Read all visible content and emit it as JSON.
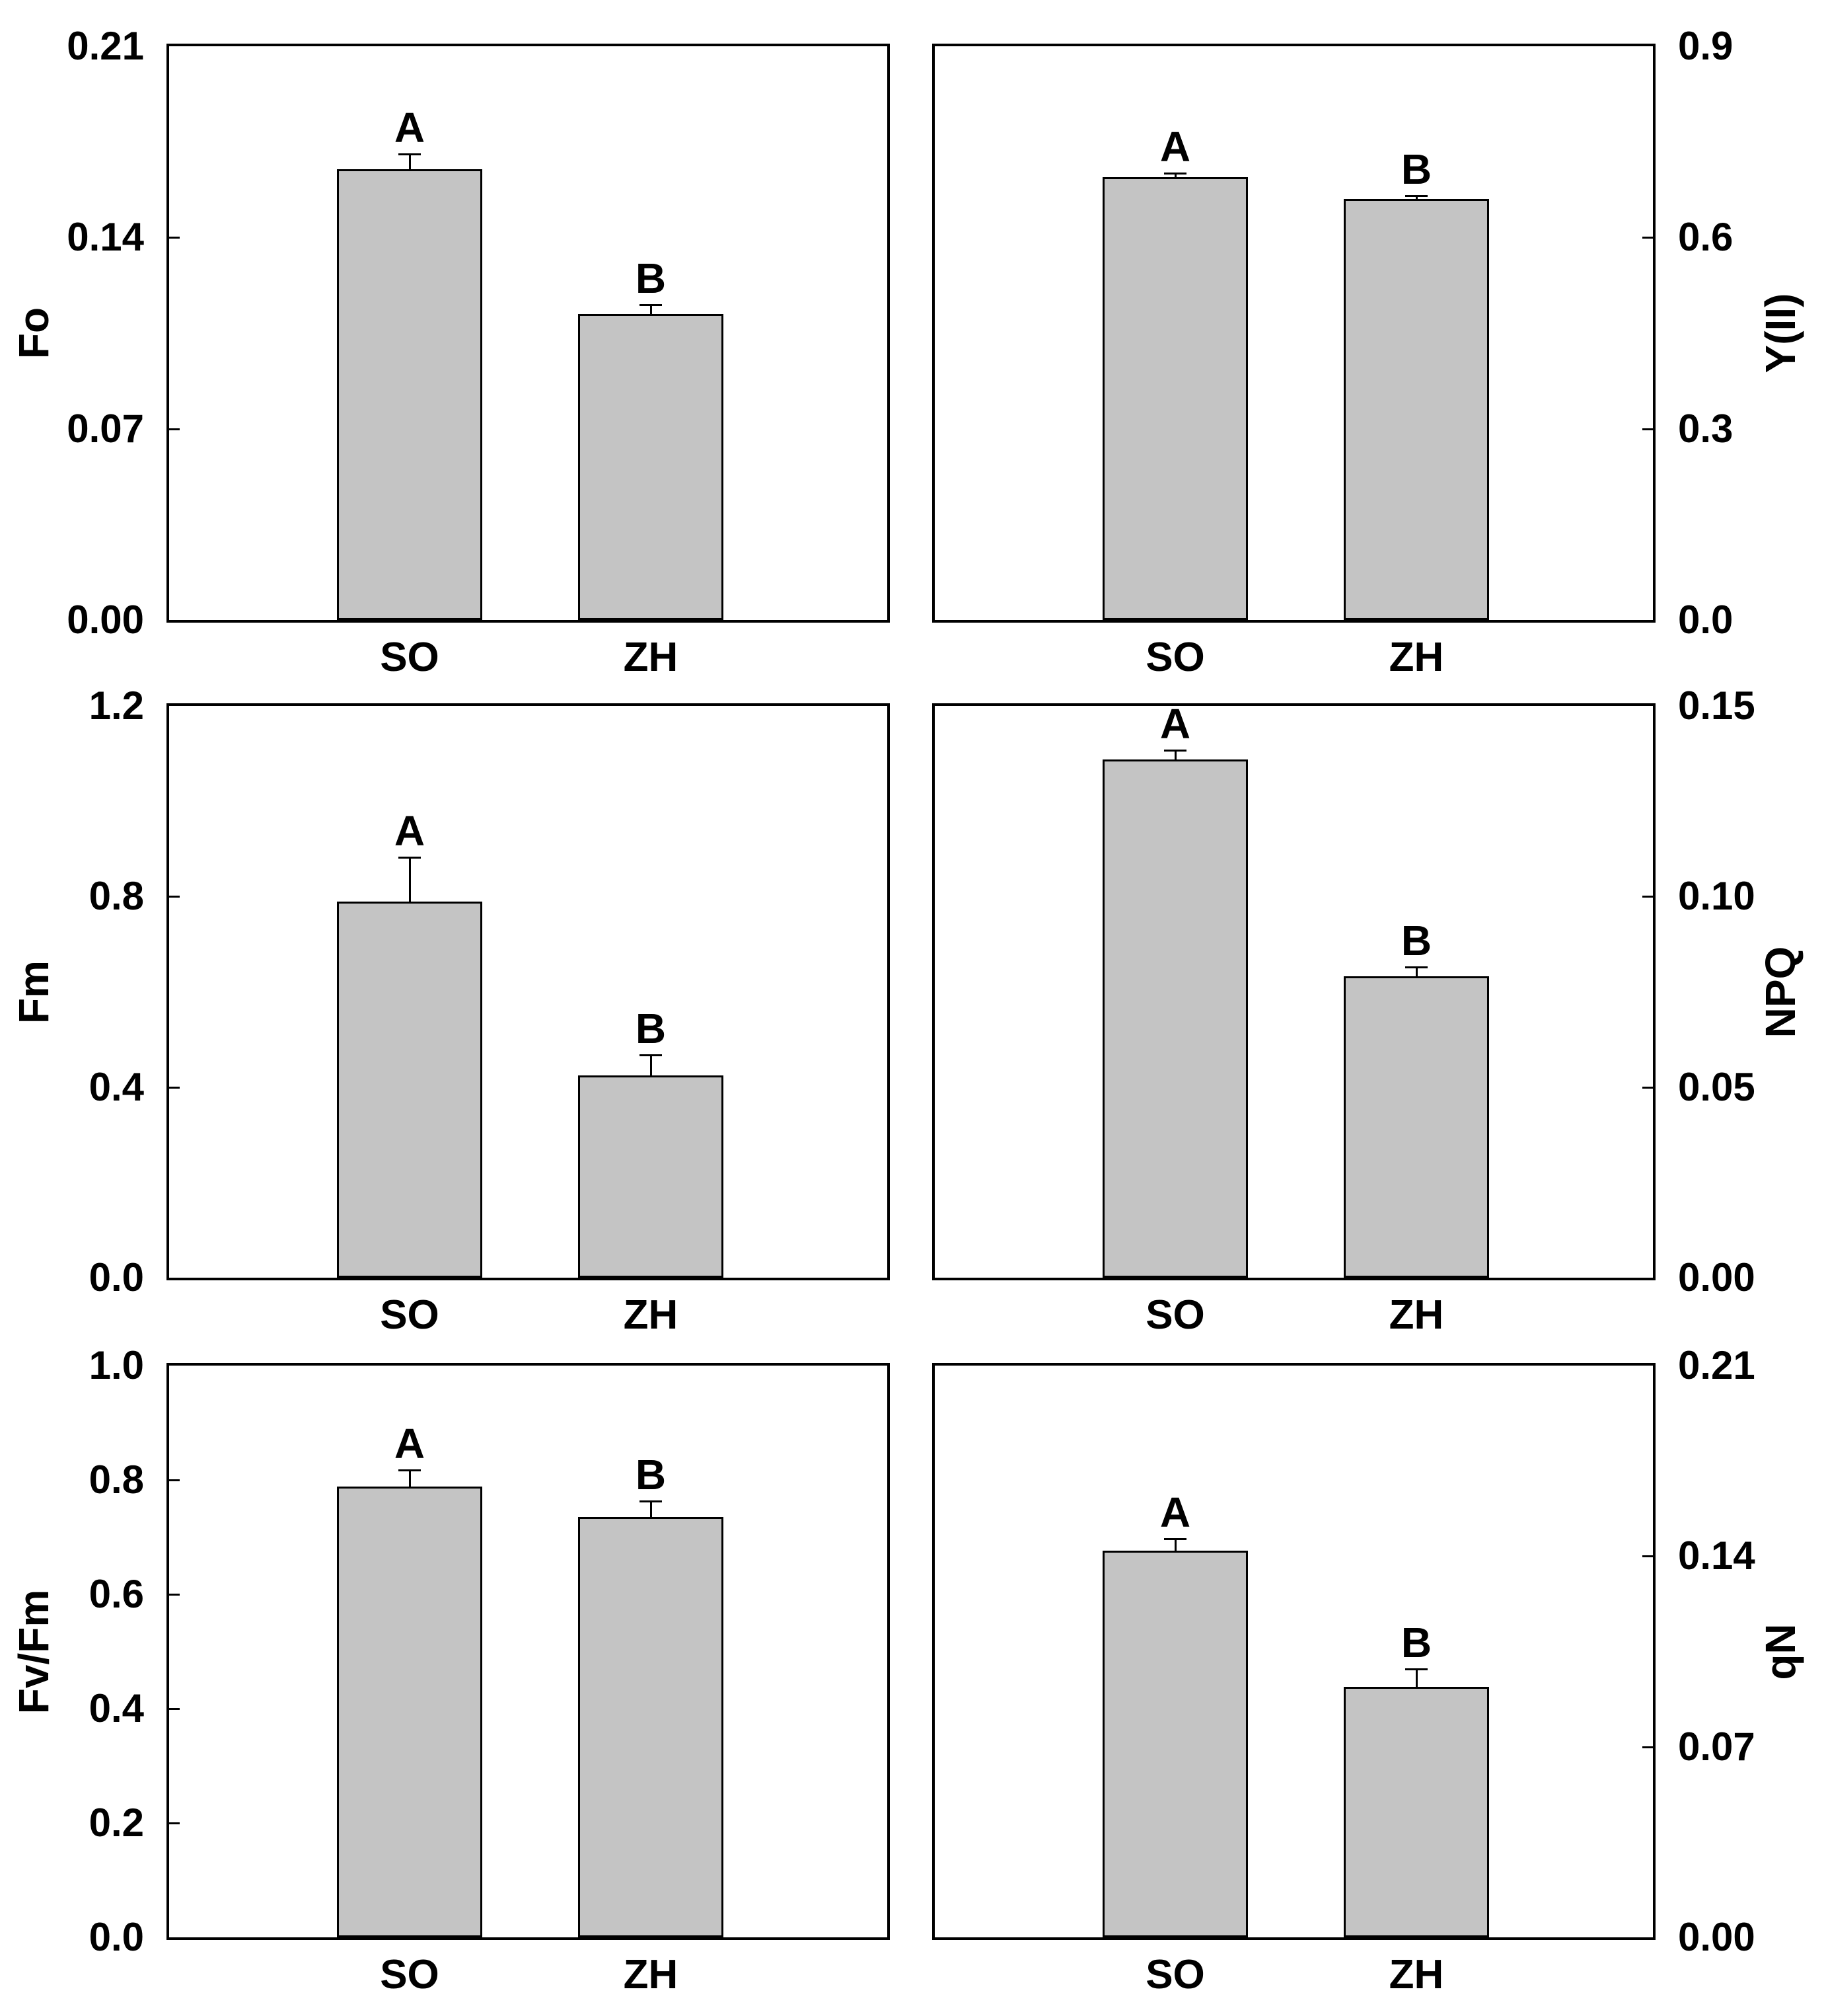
{
  "figure_title": "",
  "colors": {
    "background": "#ffffff",
    "bar_fill": "#c4c4c4",
    "bar_border": "#000000",
    "frame": "#000000",
    "text": "#000000"
  },
  "categories": [
    "SO",
    "ZH"
  ],
  "chart_data": [
    {
      "id": "fo",
      "type": "bar",
      "title": "",
      "ylabel": "Fo",
      "xlabel": "",
      "axis_side": "left",
      "grid": false,
      "legend": null,
      "ylim": [
        0,
        0.21
      ],
      "yticks": [
        {
          "value": 0.0,
          "label": "0.00"
        },
        {
          "value": 0.07,
          "label": "0.07"
        },
        {
          "value": 0.14,
          "label": "0.14"
        },
        {
          "value": 0.21,
          "label": "0.21"
        }
      ],
      "categories": [
        "SO",
        "ZH"
      ],
      "bars": [
        {
          "category": "SO",
          "value": 0.165,
          "error": 0.005,
          "letter": "A"
        },
        {
          "category": "ZH",
          "value": 0.112,
          "error": 0.003,
          "letter": "B"
        }
      ]
    },
    {
      "id": "yii",
      "type": "bar",
      "title": "",
      "ylabel": "Y(II)",
      "xlabel": "",
      "axis_side": "right",
      "grid": false,
      "legend": null,
      "ylim": [
        0,
        0.9
      ],
      "yticks": [
        {
          "value": 0.0,
          "label": "0.0"
        },
        {
          "value": 0.3,
          "label": "0.3"
        },
        {
          "value": 0.6,
          "label": "0.6"
        },
        {
          "value": 0.9,
          "label": "0.9"
        }
      ],
      "categories": [
        "SO",
        "ZH"
      ],
      "bars": [
        {
          "category": "SO",
          "value": 0.695,
          "error": 0.004,
          "letter": "A"
        },
        {
          "category": "ZH",
          "value": 0.66,
          "error": 0.003,
          "letter": "B"
        }
      ]
    },
    {
      "id": "fm",
      "type": "bar",
      "title": "",
      "ylabel": "Fm",
      "xlabel": "",
      "axis_side": "left",
      "grid": false,
      "legend": null,
      "ylim": [
        0,
        1.2
      ],
      "yticks": [
        {
          "value": 0.0,
          "label": "0.0"
        },
        {
          "value": 0.4,
          "label": "0.4"
        },
        {
          "value": 0.8,
          "label": "0.8"
        },
        {
          "value": 1.2,
          "label": "1.2"
        }
      ],
      "categories": [
        "SO",
        "ZH"
      ],
      "bars": [
        {
          "category": "SO",
          "value": 0.79,
          "error": 0.09,
          "letter": "A"
        },
        {
          "category": "ZH",
          "value": 0.425,
          "error": 0.04,
          "letter": "B"
        }
      ]
    },
    {
      "id": "npq",
      "type": "bar",
      "title": "",
      "ylabel": "NPQ",
      "xlabel": "",
      "axis_side": "right",
      "grid": false,
      "legend": null,
      "ylim": [
        0,
        0.15
      ],
      "yticks": [
        {
          "value": 0.0,
          "label": "0.00"
        },
        {
          "value": 0.05,
          "label": "0.05"
        },
        {
          "value": 0.1,
          "label": "0.10"
        },
        {
          "value": 0.15,
          "label": "0.15"
        }
      ],
      "categories": [
        "SO",
        "ZH"
      ],
      "bars": [
        {
          "category": "SO",
          "value": 0.136,
          "error": 0.002,
          "letter": "A"
        },
        {
          "category": "ZH",
          "value": 0.079,
          "error": 0.002,
          "letter": "B"
        }
      ]
    },
    {
      "id": "fvfm",
      "type": "bar",
      "title": "",
      "ylabel": "Fv/Fm",
      "xlabel": "",
      "axis_side": "left",
      "grid": false,
      "legend": null,
      "ylim": [
        0,
        1.0
      ],
      "yticks": [
        {
          "value": 0.0,
          "label": "0.0"
        },
        {
          "value": 0.2,
          "label": "0.2"
        },
        {
          "value": 0.4,
          "label": "0.4"
        },
        {
          "value": 0.6,
          "label": "0.6"
        },
        {
          "value": 0.8,
          "label": "0.8"
        },
        {
          "value": 1.0,
          "label": "1.0"
        }
      ],
      "categories": [
        "SO",
        "ZH"
      ],
      "bars": [
        {
          "category": "SO",
          "value": 0.788,
          "error": 0.027,
          "letter": "A"
        },
        {
          "category": "ZH",
          "value": 0.735,
          "error": 0.026,
          "letter": "B"
        }
      ]
    },
    {
      "id": "qn",
      "type": "bar",
      "title": "",
      "ylabel": "qN",
      "xlabel": "",
      "axis_side": "right",
      "grid": false,
      "legend": null,
      "ylim": [
        0,
        0.21
      ],
      "yticks": [
        {
          "value": 0.0,
          "label": "0.00"
        },
        {
          "value": 0.07,
          "label": "0.07"
        },
        {
          "value": 0.14,
          "label": "0.14"
        },
        {
          "value": 0.21,
          "label": "0.21"
        }
      ],
      "categories": [
        "SO",
        "ZH"
      ],
      "bars": [
        {
          "category": "SO",
          "value": 0.142,
          "error": 0.004,
          "letter": "A"
        },
        {
          "category": "ZH",
          "value": 0.092,
          "error": 0.006,
          "letter": "B"
        }
      ]
    }
  ]
}
